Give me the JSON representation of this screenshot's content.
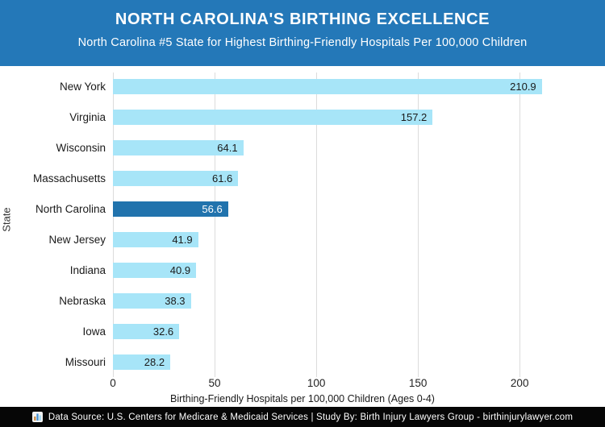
{
  "header": {
    "title": "NORTH CAROLINA'S BIRTHING EXCELLENCE",
    "subtitle": "North Carolina #5 State for Highest Birthing-Friendly Hospitals Per 100,000 Children",
    "bg_color": "#2478B8",
    "text_color": "#FFFFFF"
  },
  "chart_data": {
    "type": "bar",
    "orientation": "horizontal",
    "categories": [
      "New York",
      "Virginia",
      "Wisconsin",
      "Massachusetts",
      "North Carolina",
      "New Jersey",
      "Indiana",
      "Nebraska",
      "Iowa",
      "Missouri"
    ],
    "values": [
      210.9,
      157.2,
      64.1,
      61.6,
      56.6,
      41.9,
      40.9,
      38.3,
      32.6,
      28.2
    ],
    "value_labels": [
      "210.9",
      "157.2",
      "64.1",
      "61.6",
      "56.6",
      "41.9",
      "40.9",
      "38.3",
      "32.6",
      "28.2"
    ],
    "highlight_category": "North Carolina",
    "highlight_index": 4,
    "xlabel": "Birthing-Friendly Hospitals per 100,000 Children (Ages 0-4)",
    "ylabel": "State",
    "xlim": [
      0,
      238
    ],
    "xticks": [
      0,
      50,
      100,
      150,
      200
    ],
    "grid": "vertical-only",
    "legend": "none",
    "bar_color": "#A7E5F8",
    "highlight_bar_color": "#2173AD",
    "grid_color": "#DCDCDC",
    "value_label_color": "#1A1A1A",
    "highlight_value_label_color": "#FFFFFF"
  },
  "footer": {
    "icon": "bar-chart-icon",
    "text": "Data Source: U.S. Centers for Medicare & Medicaid Services | Study By: Birth Injury Lawyers Group - birthinjurylawyer.com",
    "bg_color": "#060606",
    "text_color": "#FFFFFF"
  }
}
